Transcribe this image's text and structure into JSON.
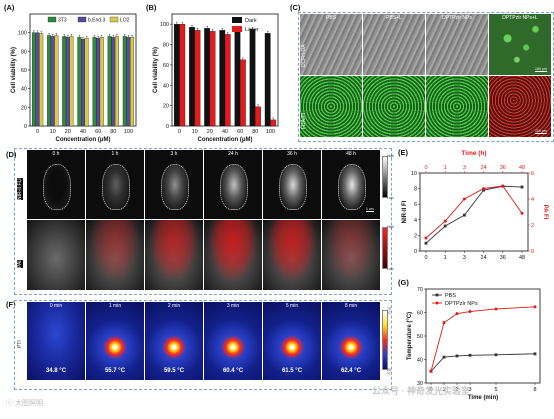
{
  "panels": {
    "A": {
      "letter": "(A)",
      "ylabel": "Cell viability (%)",
      "xlabel": "Concentration (μM)",
      "legend": [
        "3T3",
        "b.End.3",
        "LO2"
      ],
      "colors": [
        "#2e8b3a",
        "#5a4c9c",
        "#d9c94a"
      ],
      "yticks": [
        "0",
        "20",
        "40",
        "60",
        "80",
        "100"
      ],
      "xticks": [
        "0",
        "10",
        "20",
        "40",
        "60",
        "80",
        "100"
      ]
    },
    "B": {
      "letter": "(B)",
      "ylabel": "Cell viability (%)",
      "xlabel": "Concentration (μM)",
      "legend": [
        "Dark",
        "Laser"
      ],
      "colors": [
        "#111111",
        "#e11b1b"
      ],
      "yticks": [
        "0",
        "20",
        "40",
        "60",
        "80",
        "100"
      ],
      "xticks": [
        "0",
        "10",
        "20",
        "40",
        "60",
        "80",
        "100"
      ]
    },
    "C": {
      "letter": "(C)",
      "columns": [
        "PBS",
        "PBS+L",
        "DPTPzIr NPs",
        "DPTPzIr NPs+L"
      ],
      "rows": [
        "DCFH-DA",
        "FDA/PI"
      ],
      "scale": "100 μm"
    },
    "D": {
      "letter": "(D)",
      "times": [
        "0 h",
        "1 h",
        "3 h",
        "24 h",
        "36 h",
        "48 h"
      ],
      "rows": [
        "NIR-II FLI",
        "PAI"
      ],
      "fl_scale": [
        "High",
        "Low"
      ],
      "pa_scale": [
        "High",
        "Low"
      ],
      "bar": "1 cm"
    },
    "E": {
      "letter": "(E)",
      "title": "Time (h)",
      "ylabel_left": "NIR-II FI",
      "ylabel_right": "PA FI",
      "ylabel_left_sub": "t",
      "ylabel_right_sub": "t",
      "left_ticks": [
        "0",
        "2",
        "4",
        "6",
        "8",
        "10"
      ],
      "right_ticks": [
        "0",
        "2",
        "4",
        "6"
      ],
      "top_ticks": [
        "0",
        "1",
        "3",
        "24",
        "36",
        "48"
      ],
      "bottom_ticks": [
        "0",
        "1",
        "3",
        "24",
        "36",
        "48"
      ],
      "left_color": "#333333",
      "right_color": "#e11b1b"
    },
    "F": {
      "letter": "(F)",
      "times": [
        "0 min",
        "1 min",
        "2 min",
        "3 min",
        "5 min",
        "8 min"
      ],
      "temps": [
        "34.8 °C",
        "55.7 °C",
        "59.5 °C",
        "60.4 °C",
        "61.5 °C",
        "62.4 °C"
      ],
      "row": "PTI",
      "scale_high": "70 °C",
      "scale_low": "25 °C"
    },
    "G": {
      "letter": "(G)",
      "ylabel": "Temperature (°C)",
      "xlabel": "Time (min)",
      "legend": [
        "PBS",
        "DPTPzIr NPs"
      ],
      "colors": [
        "#333333",
        "#e11b1b"
      ],
      "yticks": [
        "30",
        "40",
        "50",
        "60",
        "70"
      ],
      "xticks": [
        "0",
        "1",
        "2",
        "3",
        "5",
        "8"
      ]
    }
  },
  "watermark_left": "ⓒ 大图照明",
  "watermark_right": "公众号 · 神奇发光实验室",
  "chart_data": [
    {
      "type": "bar",
      "panel": "A",
      "categories": [
        "0",
        "10",
        "20",
        "40",
        "60",
        "80",
        "100"
      ],
      "series": [
        {
          "name": "3T3",
          "values": [
            100,
            97,
            96,
            95,
            95,
            96,
            96
          ]
        },
        {
          "name": "b.End.3",
          "values": [
            100,
            96,
            95,
            93,
            94,
            95,
            95
          ]
        },
        {
          "name": "LO2",
          "values": [
            99,
            97,
            96,
            94,
            95,
            96,
            95
          ]
        }
      ],
      "ylim": [
        0,
        120
      ],
      "xlabel": "Concentration (μM)",
      "ylabel": "Cell viability (%)"
    },
    {
      "type": "bar",
      "panel": "B",
      "categories": [
        "0",
        "10",
        "20",
        "40",
        "60",
        "80",
        "100"
      ],
      "series": [
        {
          "name": "Dark",
          "values": [
            100,
            97,
            96,
            94,
            93,
            95,
            91
          ]
        },
        {
          "name": "Laser",
          "values": [
            100,
            94,
            93,
            90,
            65,
            19,
            6
          ]
        }
      ],
      "ylim": [
        0,
        100
      ],
      "xlabel": "Concentration (μM)",
      "ylabel": "Cell viability (%)"
    },
    {
      "type": "line",
      "panel": "E",
      "x": [
        "0",
        "1",
        "3",
        "24",
        "36",
        "48"
      ],
      "series": [
        {
          "name": "NIR-II FI",
          "values": [
            1.0,
            3.2,
            4.6,
            7.8,
            8.3,
            8.2
          ]
        },
        {
          "name": "PA FI",
          "values": [
            1.0,
            2.3,
            4.0,
            4.8,
            5.0,
            2.9
          ]
        }
      ],
      "xlabel": "Time (h)"
    },
    {
      "type": "line",
      "panel": "G",
      "x": [
        "0",
        "1",
        "2",
        "3",
        "5",
        "8"
      ],
      "series": [
        {
          "name": "PBS",
          "values": [
            35.0,
            41.0,
            41.5,
            41.8,
            42.0,
            42.4
          ]
        },
        {
          "name": "DPTPzIr NPs",
          "values": [
            35.0,
            55.7,
            59.5,
            60.4,
            61.5,
            62.4
          ]
        }
      ],
      "ylim": [
        30,
        70
      ],
      "xlabel": "Time (min)",
      "ylabel": "Temperature (°C)"
    }
  ]
}
